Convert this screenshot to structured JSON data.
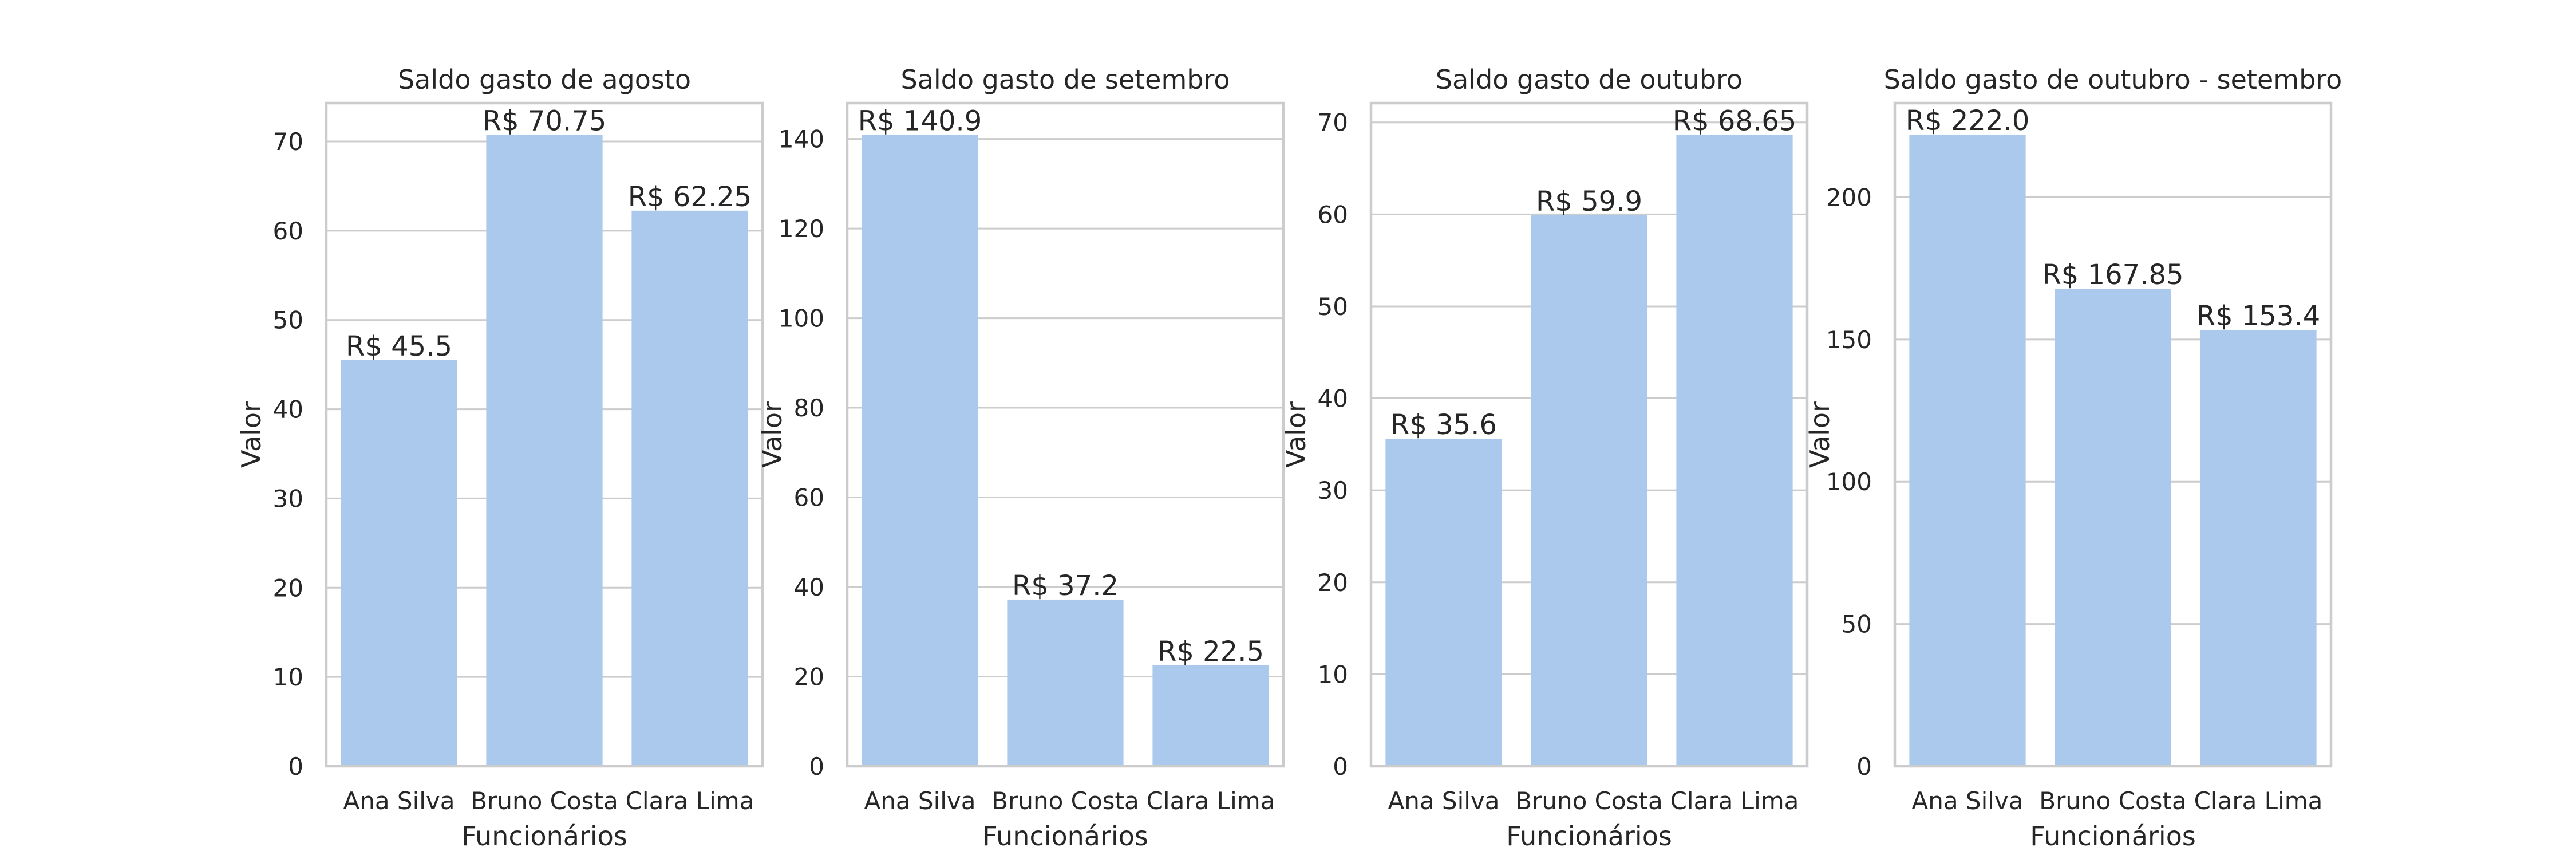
{
  "colors": {
    "bar": "#abc9ed",
    "grid": "#cccccc",
    "text": "#262626",
    "background": "#ffffff"
  },
  "chart_data": [
    {
      "type": "bar",
      "title": "Saldo gasto de agosto",
      "xlabel": "Funcionários",
      "ylabel": "Valor",
      "categories": [
        "Ana Silva",
        "Bruno Costa",
        "Clara Lima"
      ],
      "values": [
        45.5,
        70.75,
        62.25
      ],
      "labels": [
        "R$ 45.5",
        "R$ 70.75",
        "R$ 62.25"
      ],
      "ylim": [
        0,
        74.3
      ],
      "yticks": [
        0,
        10,
        20,
        30,
        40,
        50,
        60,
        70
      ],
      "grid": true,
      "legend": "none"
    },
    {
      "type": "bar",
      "title": "Saldo gasto de setembro",
      "xlabel": "Funcionários",
      "ylabel": "Valor",
      "categories": [
        "Ana Silva",
        "Bruno Costa",
        "Clara Lima"
      ],
      "values": [
        140.9,
        37.2,
        22.5
      ],
      "labels": [
        "R$ 140.9",
        "R$ 37.2",
        "R$ 22.5"
      ],
      "ylim": [
        0,
        148
      ],
      "yticks": [
        0,
        20,
        40,
        60,
        80,
        100,
        120,
        140
      ],
      "grid": true,
      "legend": "none"
    },
    {
      "type": "bar",
      "title": "Saldo gasto de outubro",
      "xlabel": "Funcionários",
      "ylabel": "Valor",
      "categories": [
        "Ana Silva",
        "Bruno Costa",
        "Clara Lima"
      ],
      "values": [
        35.6,
        59.9,
        68.65
      ],
      "labels": [
        "R$ 35.6",
        "R$ 59.9",
        "R$ 68.65"
      ],
      "ylim": [
        0,
        72.1
      ],
      "yticks": [
        0,
        10,
        20,
        30,
        40,
        50,
        60,
        70
      ],
      "grid": true,
      "legend": "none"
    },
    {
      "type": "bar",
      "title": "Saldo gasto de outubro - setembro",
      "xlabel": "Funcionários",
      "ylabel": "Valor",
      "categories": [
        "Ana Silva",
        "Bruno Costa",
        "Clara Lima"
      ],
      "values": [
        222.0,
        167.85,
        153.4
      ],
      "labels": [
        "R$ 222.0",
        "R$ 167.85",
        "R$ 153.4"
      ],
      "ylim": [
        0,
        233.1
      ],
      "yticks": [
        0,
        50,
        100,
        150,
        200
      ],
      "grid": true,
      "legend": "none"
    }
  ]
}
